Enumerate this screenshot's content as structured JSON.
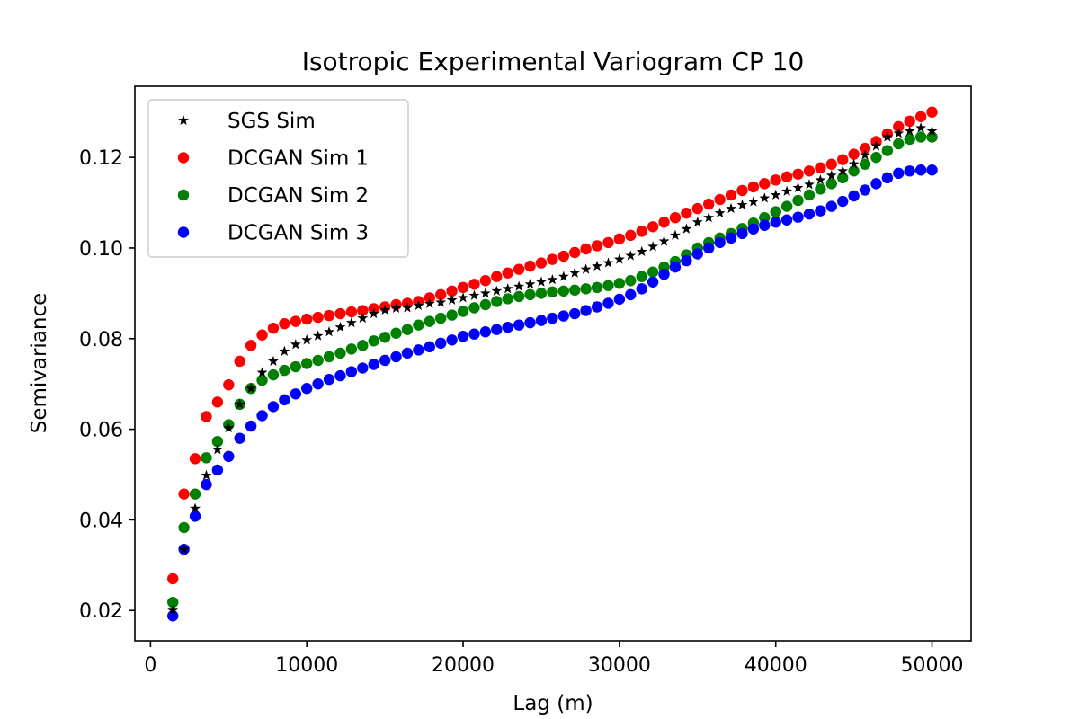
{
  "chart_data": {
    "type": "scatter",
    "title": "Isotropic Experimental Variogram CP 10",
    "xlabel": "Lag (m)",
    "ylabel": "Semivariance",
    "xlim": [
      -1000,
      52500
    ],
    "ylim": [
      0.0133,
      0.1357
    ],
    "xticks": [
      0,
      10000,
      20000,
      30000,
      40000,
      50000
    ],
    "xtick_labels": [
      "0",
      "10000",
      "20000",
      "30000",
      "40000",
      "50000"
    ],
    "yticks": [
      0.02,
      0.04,
      0.06,
      0.08,
      0.1,
      0.12
    ],
    "ytick_labels": [
      "0.02",
      "0.04",
      "0.06",
      "0.08",
      "0.10",
      "0.12"
    ],
    "grid": false,
    "legend_position": "top-left",
    "x": [
      1429,
      2143,
      2857,
      3571,
      4286,
      5000,
      5714,
      6429,
      7143,
      7857,
      8571,
      9286,
      10000,
      10714,
      11429,
      12143,
      12857,
      13571,
      14286,
      15000,
      15714,
      16429,
      17143,
      17857,
      18571,
      19286,
      20000,
      20714,
      21429,
      22143,
      22857,
      23571,
      24286,
      25000,
      25714,
      26429,
      27143,
      27857,
      28571,
      29286,
      30000,
      30714,
      31429,
      32143,
      32857,
      33571,
      34286,
      35000,
      35714,
      36429,
      37143,
      37857,
      38571,
      39286,
      40000,
      40714,
      41429,
      42143,
      42857,
      43571,
      44286,
      45000,
      45714,
      46429,
      47143,
      47857,
      48571,
      49286,
      50000
    ],
    "series": [
      {
        "name": "SGS Sim",
        "marker": "star",
        "color": "#000000",
        "values": [
          0.02,
          0.0335,
          0.0425,
          0.0498,
          0.0555,
          0.0603,
          0.0655,
          0.069,
          0.0725,
          0.075,
          0.0772,
          0.0787,
          0.0797,
          0.0806,
          0.0815,
          0.0825,
          0.0835,
          0.0845,
          0.0855,
          0.0863,
          0.0867,
          0.0868,
          0.0873,
          0.0877,
          0.088,
          0.0885,
          0.089,
          0.0895,
          0.09,
          0.0905,
          0.091,
          0.0915,
          0.092,
          0.0925,
          0.093,
          0.0937,
          0.0945,
          0.0953,
          0.096,
          0.0967,
          0.0975,
          0.0983,
          0.0992,
          0.1003,
          0.1015,
          0.1028,
          0.1042,
          0.1057,
          0.1067,
          0.1077,
          0.1087,
          0.1095,
          0.1102,
          0.111,
          0.1117,
          0.1125,
          0.1133,
          0.114,
          0.115,
          0.116,
          0.117,
          0.1185,
          0.1205,
          0.1225,
          0.1245,
          0.1253,
          0.1258,
          0.1265,
          0.1258
        ]
      },
      {
        "name": "DCGAN Sim 1",
        "marker": "circle",
        "color": "#ff0000",
        "values": [
          0.027,
          0.0457,
          0.0535,
          0.0628,
          0.066,
          0.0698,
          0.075,
          0.0785,
          0.0808,
          0.0823,
          0.0833,
          0.0838,
          0.0843,
          0.0847,
          0.0851,
          0.0855,
          0.0859,
          0.0862,
          0.0866,
          0.087,
          0.0875,
          0.0878,
          0.0882,
          0.089,
          0.0897,
          0.0905,
          0.0913,
          0.092,
          0.0928,
          0.0937,
          0.0945,
          0.0953,
          0.096,
          0.0967,
          0.0975,
          0.0982,
          0.099,
          0.0998,
          0.1005,
          0.1012,
          0.102,
          0.1028,
          0.1037,
          0.1047,
          0.1057,
          0.1067,
          0.1077,
          0.1087,
          0.1097,
          0.1107,
          0.1117,
          0.1127,
          0.1135,
          0.1142,
          0.115,
          0.1157,
          0.1163,
          0.117,
          0.1177,
          0.1185,
          0.1195,
          0.1207,
          0.122,
          0.1235,
          0.1252,
          0.1268,
          0.128,
          0.129,
          0.13
        ]
      },
      {
        "name": "DCGAN Sim 2",
        "marker": "circle",
        "color": "#008000",
        "values": [
          0.0218,
          0.0383,
          0.0457,
          0.0537,
          0.0573,
          0.061,
          0.0655,
          0.069,
          0.0708,
          0.072,
          0.073,
          0.0738,
          0.0745,
          0.0752,
          0.076,
          0.0768,
          0.0777,
          0.0785,
          0.0795,
          0.0803,
          0.0812,
          0.082,
          0.083,
          0.0838,
          0.0845,
          0.0852,
          0.086,
          0.0868,
          0.0875,
          0.0882,
          0.0888,
          0.0893,
          0.0897,
          0.09,
          0.0903,
          0.0905,
          0.0907,
          0.091,
          0.0913,
          0.0917,
          0.0922,
          0.0928,
          0.0937,
          0.0947,
          0.0958,
          0.097,
          0.0985,
          0.1,
          0.1012,
          0.1022,
          0.1032,
          0.1043,
          0.1055,
          0.1067,
          0.108,
          0.1092,
          0.1105,
          0.1117,
          0.113,
          0.1142,
          0.1155,
          0.117,
          0.1185,
          0.12,
          0.1215,
          0.123,
          0.124,
          0.1245,
          0.1245
        ]
      },
      {
        "name": "DCGAN Sim 3",
        "marker": "circle",
        "color": "#0000ff",
        "values": [
          0.0188,
          0.0335,
          0.0408,
          0.0478,
          0.051,
          0.054,
          0.058,
          0.0607,
          0.063,
          0.065,
          0.0665,
          0.0678,
          0.069,
          0.07,
          0.071,
          0.0718,
          0.0727,
          0.0735,
          0.0743,
          0.0752,
          0.076,
          0.0768,
          0.0775,
          0.0782,
          0.079,
          0.0797,
          0.0805,
          0.081,
          0.0815,
          0.082,
          0.0825,
          0.083,
          0.0835,
          0.084,
          0.0845,
          0.085,
          0.0855,
          0.0862,
          0.087,
          0.0878,
          0.0887,
          0.0897,
          0.091,
          0.0925,
          0.0942,
          0.0958,
          0.0972,
          0.0987,
          0.1,
          0.1012,
          0.1022,
          0.1032,
          0.1042,
          0.105,
          0.1057,
          0.1062,
          0.1068,
          0.1075,
          0.1082,
          0.1092,
          0.1103,
          0.1115,
          0.1128,
          0.1142,
          0.1155,
          0.1165,
          0.117,
          0.1172,
          0.1172
        ]
      }
    ]
  }
}
